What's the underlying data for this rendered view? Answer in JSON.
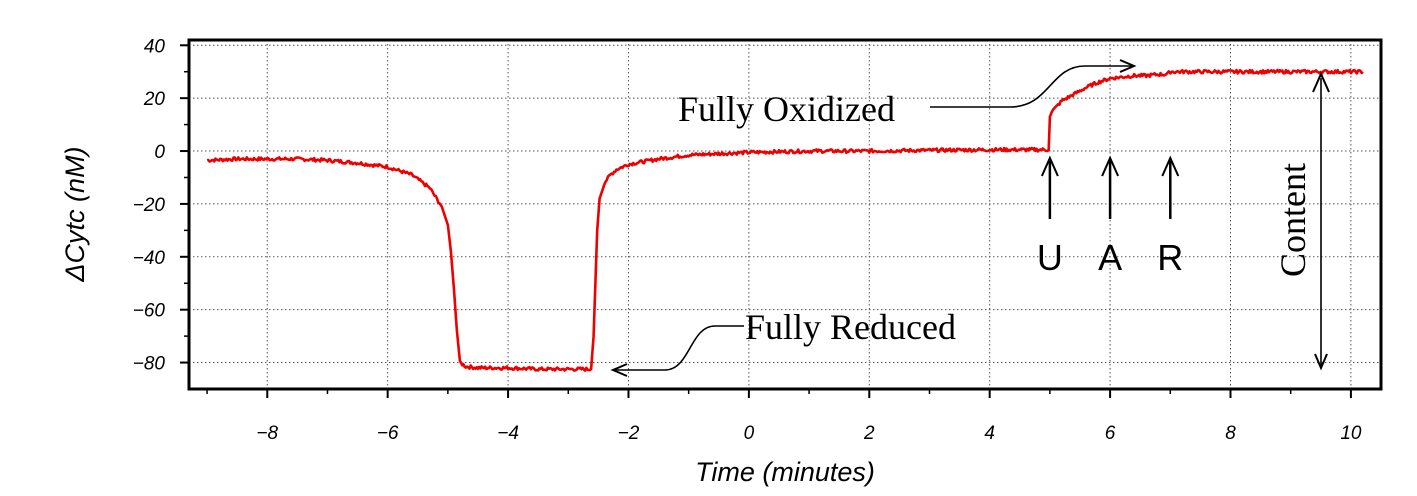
{
  "chart_data": {
    "type": "line",
    "title": "",
    "xlabel": "Time (minutes)",
    "ylabel_prefix": "ΔCytc",
    "ylabel_unit": "(nM)",
    "xlim": [
      -9.3,
      10.5
    ],
    "ylim": [
      -90,
      42
    ],
    "xticks": [
      -8,
      -6,
      -4,
      -2,
      0,
      2,
      4,
      6,
      8,
      10
    ],
    "yticks": [
      40,
      20,
      0,
      -20,
      -40,
      -60,
      -80
    ],
    "xtick_labels": [
      "−8",
      "−6",
      "−4",
      "−2",
      "0",
      "2",
      "4",
      "6",
      "8",
      "10"
    ],
    "ytick_labels": [
      "40",
      "20",
      "0",
      "−20",
      "−40",
      "−60",
      "−80"
    ],
    "grid": true,
    "series": [
      {
        "name": "ΔCytc",
        "color": "#ee0000",
        "x": [
          -9.0,
          -8.5,
          -8.0,
          -7.5,
          -7.0,
          -6.5,
          -6.0,
          -5.6,
          -5.3,
          -5.1,
          -5.0,
          -4.95,
          -4.9,
          -4.85,
          -4.8,
          -4.7,
          -4.5,
          -4.0,
          -3.5,
          -3.0,
          -2.62,
          -2.58,
          -2.55,
          -2.52,
          -2.48,
          -2.4,
          -2.3,
          -2.2,
          -2.0,
          -1.5,
          -1.0,
          0.0,
          1.0,
          2.0,
          3.0,
          4.0,
          4.98,
          5.0,
          5.03,
          5.1,
          5.2,
          5.4,
          5.6,
          5.8,
          6.0,
          6.2,
          6.4,
          6.6,
          6.8,
          6.95,
          7.0,
          7.1,
          7.5,
          8.0,
          8.5,
          9.0,
          9.5,
          10.2
        ],
        "y": [
          -3.5,
          -3,
          -3,
          -3,
          -3.5,
          -4.5,
          -6,
          -9,
          -14,
          -21,
          -28,
          -38,
          -52,
          -68,
          -80,
          -81.5,
          -82,
          -82,
          -82.5,
          -82.5,
          -82.5,
          -70,
          -50,
          -30,
          -18,
          -12,
          -9,
          -7,
          -5,
          -3,
          -1.5,
          -0.5,
          0,
          0,
          0.3,
          0.5,
          0.5,
          13,
          15,
          16.5,
          19,
          21.5,
          24,
          26,
          27.5,
          28,
          28.5,
          28.5,
          29,
          29,
          30,
          30,
          30,
          30,
          30,
          30,
          30,
          30
        ]
      }
    ],
    "annotations": {
      "fully_oxidized": "Fully Oxidized",
      "fully_reduced": "Fully Reduced",
      "content": "Content",
      "markers": [
        {
          "label": "U",
          "x": 5
        },
        {
          "label": "A",
          "x": 6
        },
        {
          "label": "R",
          "x": 7
        }
      ]
    }
  }
}
